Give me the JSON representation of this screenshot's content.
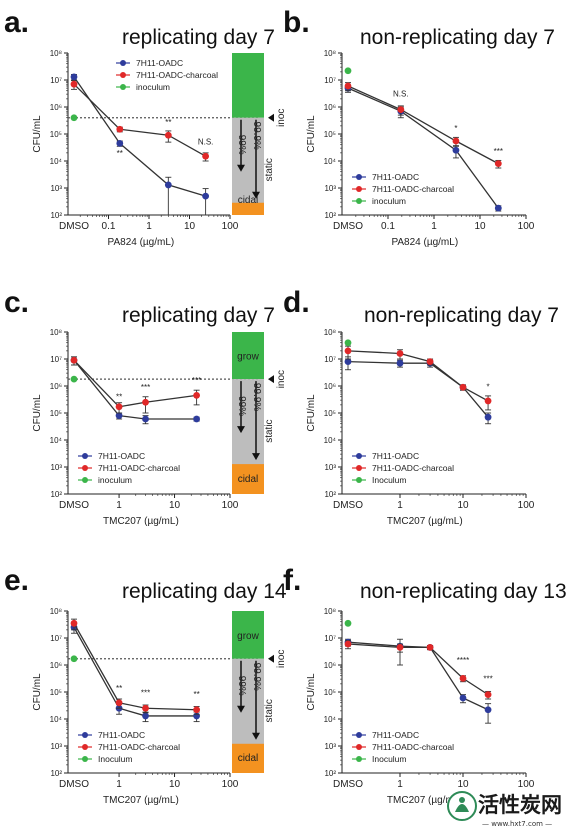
{
  "colors": {
    "blue": "#2e3c9c",
    "red": "#e02828",
    "green": "#3bb54a",
    "grow": "#3bb54a",
    "cidal": "#f39220",
    "static": "#bdbdbd"
  },
  "watermark": {
    "main": "活性炭网",
    "sub": "— www.hxt7.com —"
  },
  "chart_data": [
    {
      "type": "scatter",
      "label": "a.",
      "title": "replicating day 7",
      "xlabel": "PA824 (µg/mL)",
      "ylabel": "CFU/mL",
      "xscale": "log",
      "yscale": "log",
      "xlim": [
        0.01,
        100
      ],
      "ylim": [
        100,
        100000000
      ],
      "xticks": [
        "DMSO",
        "0.1",
        "1",
        "10",
        "100"
      ],
      "yticks": [
        "10²",
        "10³",
        "10⁴",
        "10⁵",
        "10⁶",
        "10⁷",
        "10⁸"
      ],
      "legend": [
        "7H11-OADC",
        "7H11-OADC-charcoal",
        "inoculum"
      ],
      "legend_position": "top",
      "inoculum_line": 400000,
      "side_bar": {
        "grow": "",
        "cidal": "cidal",
        "pct1": "99%",
        "pct2": "99.9%",
        "static": "static",
        "inoc": "inoc"
      },
      "series": [
        {
          "name": "7H11-OADC",
          "color": "blue",
          "x": [
            0.015,
            0.19,
            3,
            25
          ],
          "y": [
            13000000,
            45000,
            1300,
            500
          ],
          "err": [
            3000000,
            10000,
            1200,
            450
          ]
        },
        {
          "name": "7H11-OADC-charcoal",
          "color": "red",
          "x": [
            0.015,
            0.19,
            3,
            25
          ],
          "y": [
            7000000,
            150000,
            90000,
            15000
          ],
          "err": [
            2500000,
            30000,
            40000,
            5000
          ]
        },
        {
          "name": "inoculum",
          "color": "green",
          "x": [
            0.015
          ],
          "y": [
            400000
          ],
          "err": [
            0
          ]
        }
      ],
      "annotations": [
        {
          "text": "**",
          "x": 0.19,
          "y": 15000
        },
        {
          "text": "**",
          "x": 3,
          "y": 220000
        },
        {
          "text": "N.S.",
          "x": 25,
          "y": 40000
        }
      ]
    },
    {
      "type": "scatter",
      "label": "b.",
      "title": "non-replicating day 7",
      "xlabel": "PA824 (µg/mL)",
      "ylabel": "CFU/mL",
      "xscale": "log",
      "yscale": "log",
      "xlim": [
        0.01,
        100
      ],
      "ylim": [
        100,
        100000000
      ],
      "xticks": [
        "DMSO",
        "0.1",
        "1",
        "10",
        "100"
      ],
      "yticks": [
        "10²",
        "10³",
        "10⁴",
        "10⁵",
        "10⁶",
        "10⁷",
        "10⁸"
      ],
      "legend": [
        "7H11-OADC",
        "7H11-OADC-charcoal",
        "inoculum"
      ],
      "legend_position": "bottom-left",
      "series": [
        {
          "name": "7H11-OADC",
          "color": "blue",
          "x": [
            0.015,
            0.19,
            3,
            25
          ],
          "y": [
            5000000,
            700000,
            25000,
            180
          ],
          "err": [
            1500000,
            300000,
            12000,
            40
          ]
        },
        {
          "name": "7H11-OADC-charcoal",
          "color": "red",
          "x": [
            0.015,
            0.19,
            3,
            25
          ],
          "y": [
            6000000,
            800000,
            55000,
            8000
          ],
          "err": [
            2000000,
            300000,
            20000,
            2500
          ]
        },
        {
          "name": "inoculum",
          "color": "green",
          "x": [
            0.015
          ],
          "y": [
            22000000
          ],
          "err": [
            0
          ]
        }
      ],
      "annotations": [
        {
          "text": "N.S.",
          "x": 0.19,
          "y": 2400000
        },
        {
          "text": "*",
          "x": 3,
          "y": 130000
        },
        {
          "text": "***",
          "x": 25,
          "y": 18000
        }
      ]
    },
    {
      "type": "scatter",
      "label": "c.",
      "title": "replicating day 7",
      "xlabel": "TMC207 (µg/mL)",
      "ylabel": "CFU/mL",
      "xscale": "log",
      "yscale": "log",
      "xlim": [
        0.12,
        100
      ],
      "ylim": [
        100,
        100000000
      ],
      "xticks": [
        "DMSO",
        "1",
        "10",
        "100"
      ],
      "yticks": [
        "10²",
        "10³",
        "10⁴",
        "10⁵",
        "10⁶",
        "10⁷",
        "10⁸"
      ],
      "legend": [
        "7H11-OADC",
        "7H11-OADC-charcoal",
        "inoculum"
      ],
      "legend_position": "bottom-left",
      "inoculum_line": 1800000,
      "side_bar": {
        "grow": "grow",
        "cidal": "cidal",
        "pct1": "99%",
        "pct2": "99.9%",
        "static": "static",
        "inoc": "inoc"
      },
      "series": [
        {
          "name": "7H11-OADC",
          "color": "blue",
          "x": [
            0.15,
            1,
            3,
            25
          ],
          "y": [
            9000000,
            80000,
            60000,
            60000
          ],
          "err": [
            3000000,
            20000,
            20000,
            10000
          ]
        },
        {
          "name": "7H11-OADC-charcoal",
          "color": "red",
          "x": [
            0.15,
            1,
            3,
            25
          ],
          "y": [
            9000000,
            170000,
            250000,
            450000
          ],
          "err": [
            3000000,
            70000,
            150000,
            250000
          ]
        },
        {
          "name": "inoculum",
          "color": "green",
          "x": [
            0.15
          ],
          "y": [
            1800000
          ],
          "err": [
            0
          ]
        }
      ],
      "annotations": [
        {
          "text": "**",
          "x": 1,
          "y": 320000
        },
        {
          "text": "***",
          "x": 3,
          "y": 700000
        },
        {
          "text": "***",
          "x": 25,
          "y": 1300000
        }
      ]
    },
    {
      "type": "scatter",
      "label": "d.",
      "title": "non-replicating day 7",
      "xlabel": "TMC207 (µg/mL)",
      "ylabel": "CFU/mL",
      "xscale": "log",
      "yscale": "log",
      "xlim": [
        0.12,
        100
      ],
      "ylim": [
        100,
        100000000
      ],
      "xticks": [
        "DMSO",
        "1",
        "10",
        "100"
      ],
      "yticks": [
        "10²",
        "10³",
        "10⁴",
        "10⁵",
        "10⁶",
        "10⁷",
        "10⁸"
      ],
      "legend": [
        "7H11-OADC",
        "7H11-OADC-charcoal",
        "Inoculum"
      ],
      "legend_position": "bottom-left",
      "series": [
        {
          "name": "7H11-OADC",
          "color": "blue",
          "x": [
            0.15,
            1,
            3,
            10,
            25
          ],
          "y": [
            8000000,
            7000000,
            7000000,
            900000,
            70000
          ],
          "err": [
            4000000,
            2000000,
            2000000,
            200000,
            30000
          ]
        },
        {
          "name": "7H11-OADC-charcoal",
          "color": "red",
          "x": [
            0.15,
            1,
            3,
            10,
            25
          ],
          "y": [
            20000000,
            16000000,
            8000000,
            900000,
            280000
          ],
          "err": [
            10000000,
            6000000,
            2000000,
            200000,
            150000
          ]
        },
        {
          "name": "Inoculum",
          "color": "green",
          "x": [
            0.15
          ],
          "y": [
            40000000
          ],
          "err": [
            0
          ]
        }
      ],
      "annotations": [
        {
          "text": "*",
          "x": 25,
          "y": 750000
        }
      ]
    },
    {
      "type": "scatter",
      "label": "e.",
      "title": "replicating day 14",
      "xlabel": "TMC207 (µg/mL)",
      "ylabel": "CFU/mL",
      "xscale": "log",
      "yscale": "log",
      "xlim": [
        0.12,
        100
      ],
      "ylim": [
        100,
        100000000
      ],
      "xticks": [
        "DMSO",
        "1",
        "10",
        "100"
      ],
      "yticks": [
        "10²",
        "10³",
        "10⁴",
        "10⁵",
        "10⁶",
        "10⁷",
        "10⁸"
      ],
      "legend": [
        "7H11-OADC",
        "7H11-OADC-charcoal",
        "Inoculum"
      ],
      "legend_position": "bottom-left",
      "inoculum_line": 1700000,
      "side_bar": {
        "grow": "grow",
        "cidal": "cidal",
        "pct1": "99%",
        "pct2": "99.9%",
        "static": "static",
        "inoc": "inoc"
      },
      "series": [
        {
          "name": "7H11-OADC",
          "color": "blue",
          "x": [
            0.15,
            1,
            3,
            25
          ],
          "y": [
            25000000,
            25000,
            13000,
            13000
          ],
          "err": [
            10000000,
            10000,
            5000,
            5000
          ]
        },
        {
          "name": "7H11-OADC-charcoal",
          "color": "red",
          "x": [
            0.15,
            1,
            3,
            25
          ],
          "y": [
            35000000,
            40000,
            25000,
            22000
          ],
          "err": [
            15000000,
            15000,
            8000,
            7000
          ]
        },
        {
          "name": "Inoculum",
          "color": "green",
          "x": [
            0.15
          ],
          "y": [
            1700000
          ],
          "err": [
            0
          ]
        }
      ],
      "annotations": [
        {
          "text": "**",
          "x": 1,
          "y": 110000
        },
        {
          "text": "***",
          "x": 3,
          "y": 75000
        },
        {
          "text": "**",
          "x": 25,
          "y": 65000
        }
      ]
    },
    {
      "type": "scatter",
      "label": "f.",
      "title": "non-replicating day 13",
      "xlabel": "TMC207 (µg/mL)",
      "ylabel": "CFU/mL",
      "xscale": "log",
      "yscale": "log",
      "xlim": [
        0.12,
        100
      ],
      "ylim": [
        100,
        100000000
      ],
      "xticks": [
        "DMSO",
        "1",
        "10",
        "100"
      ],
      "yticks": [
        "10²",
        "10³",
        "10⁴",
        "10⁵",
        "10⁶",
        "10⁷",
        "10⁸"
      ],
      "legend": [
        "7H11-OADC",
        "7H11-OADC-charcoal",
        "Inoculum"
      ],
      "legend_position": "bottom-left",
      "series": [
        {
          "name": "7H11-OADC",
          "color": "blue",
          "x": [
            0.15,
            1,
            3,
            10,
            25
          ],
          "y": [
            7000000,
            5000000,
            4500000,
            60000,
            22000
          ],
          "err": [
            2000000,
            4000000,
            800000,
            20000,
            15000
          ]
        },
        {
          "name": "7H11-OADC-charcoal",
          "color": "red",
          "x": [
            0.15,
            1,
            3,
            10,
            25
          ],
          "y": [
            6000000,
            4500000,
            4500000,
            320000,
            80000
          ],
          "err": [
            2000000,
            1500000,
            800000,
            80000,
            25000
          ]
        },
        {
          "name": "Inoculum",
          "color": "green",
          "x": [
            0.15
          ],
          "y": [
            35000000
          ],
          "err": [
            0
          ]
        }
      ],
      "annotations": [
        {
          "text": "****",
          "x": 10,
          "y": 1200000
        },
        {
          "text": "***",
          "x": 25,
          "y": 250000
        }
      ]
    }
  ]
}
